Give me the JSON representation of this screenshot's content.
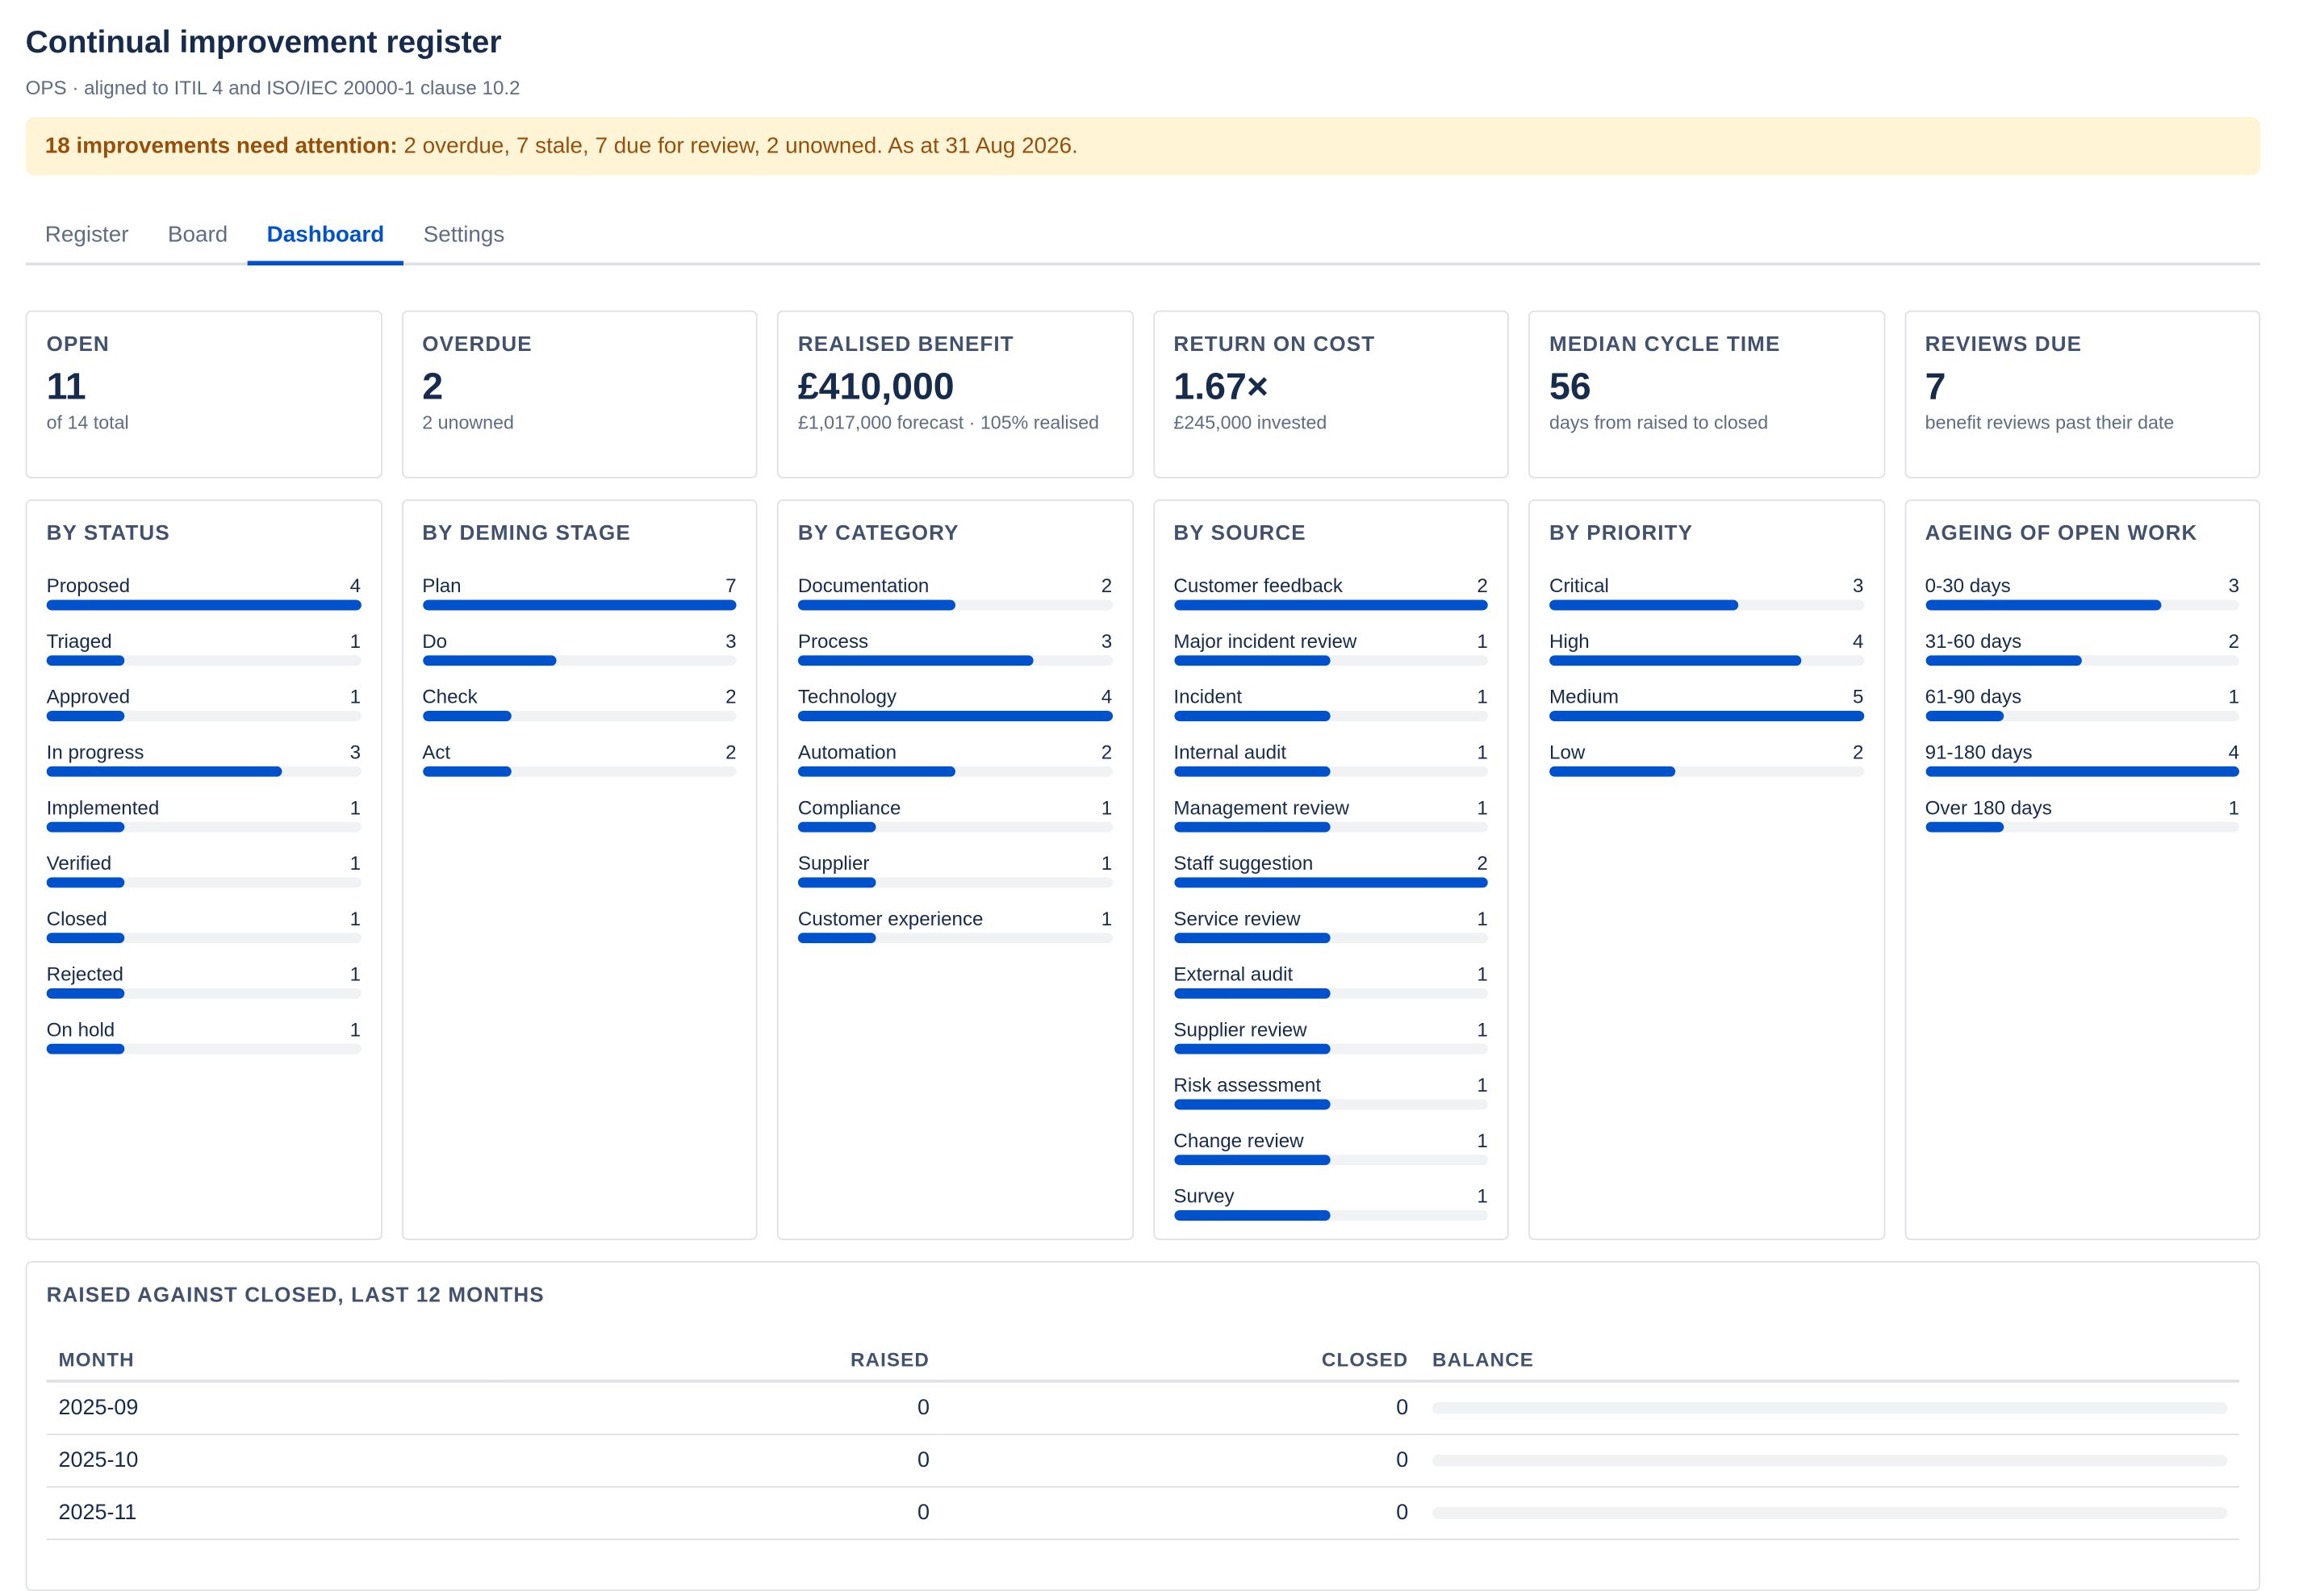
{
  "header": {
    "title": "Continual improvement register",
    "subtitle": "OPS · aligned to ITIL 4 and ISO/IEC 20000-1 clause 10.2"
  },
  "alert": {
    "strong": "18 improvements need attention:",
    "text": " 2 overdue, 7 stale, 7 due for review, 2 unowned. As at 31 Aug 2026."
  },
  "tabs": [
    {
      "label": "Register"
    },
    {
      "label": "Board"
    },
    {
      "label": "Dashboard"
    },
    {
      "label": "Settings"
    }
  ],
  "kpis": [
    {
      "label": "OPEN",
      "value": "11",
      "note": "of 14 total"
    },
    {
      "label": "OVERDUE",
      "value": "2",
      "note": "2 unowned"
    },
    {
      "label": "REALISED BENEFIT",
      "value": "£410,000",
      "note": "£1,017,000 forecast · 105% realised"
    },
    {
      "label": "RETURN ON COST",
      "value": "1.67×",
      "note": "£245,000 invested"
    },
    {
      "label": "MEDIAN CYCLE TIME",
      "value": "56",
      "note": "days from raised to closed"
    },
    {
      "label": "REVIEWS DUE",
      "value": "7",
      "note": "benefit reviews past their date"
    }
  ],
  "distributions": [
    {
      "title": "BY STATUS",
      "max": 4,
      "items": [
        {
          "label": "Proposed",
          "value": 4
        },
        {
          "label": "Triaged",
          "value": 1
        },
        {
          "label": "Approved",
          "value": 1
        },
        {
          "label": "In progress",
          "value": 3
        },
        {
          "label": "Implemented",
          "value": 1
        },
        {
          "label": "Verified",
          "value": 1
        },
        {
          "label": "Closed",
          "value": 1
        },
        {
          "label": "Rejected",
          "value": 1
        },
        {
          "label": "On hold",
          "value": 1
        }
      ]
    },
    {
      "title": "BY DEMING STAGE",
      "max": 7,
      "items": [
        {
          "label": "Plan",
          "value": 7
        },
        {
          "label": "Do",
          "value": 3
        },
        {
          "label": "Check",
          "value": 2
        },
        {
          "label": "Act",
          "value": 2
        }
      ]
    },
    {
      "title": "BY CATEGORY",
      "max": 4,
      "items": [
        {
          "label": "Documentation",
          "value": 2
        },
        {
          "label": "Process",
          "value": 3
        },
        {
          "label": "Technology",
          "value": 4
        },
        {
          "label": "Automation",
          "value": 2
        },
        {
          "label": "Compliance",
          "value": 1
        },
        {
          "label": "Supplier",
          "value": 1
        },
        {
          "label": "Customer experience",
          "value": 1
        }
      ]
    },
    {
      "title": "BY SOURCE",
      "max": 2,
      "items": [
        {
          "label": "Customer feedback",
          "value": 2
        },
        {
          "label": "Major incident review",
          "value": 1
        },
        {
          "label": "Incident",
          "value": 1
        },
        {
          "label": "Internal audit",
          "value": 1
        },
        {
          "label": "Management review",
          "value": 1
        },
        {
          "label": "Staff suggestion",
          "value": 2
        },
        {
          "label": "Service review",
          "value": 1
        },
        {
          "label": "External audit",
          "value": 1
        },
        {
          "label": "Supplier review",
          "value": 1
        },
        {
          "label": "Risk assessment",
          "value": 1
        },
        {
          "label": "Change review",
          "value": 1
        },
        {
          "label": "Survey",
          "value": 1
        }
      ]
    },
    {
      "title": "BY PRIORITY",
      "max": 5,
      "items": [
        {
          "label": "Critical",
          "value": 3
        },
        {
          "label": "High",
          "value": 4
        },
        {
          "label": "Medium",
          "value": 5
        },
        {
          "label": "Low",
          "value": 2
        }
      ]
    },
    {
      "title": "AGEING OF OPEN WORK",
      "max": 4,
      "items": [
        {
          "label": "0-30 days",
          "value": 3
        },
        {
          "label": "31-60 days",
          "value": 2
        },
        {
          "label": "61-90 days",
          "value": 1
        },
        {
          "label": "91-180 days",
          "value": 4
        },
        {
          "label": "Over 180 days",
          "value": 1
        }
      ]
    }
  ],
  "trend": {
    "title": "RAISED AGAINST CLOSED, LAST 12 MONTHS",
    "columns": [
      "MONTH",
      "RAISED",
      "CLOSED",
      "BALANCE"
    ],
    "rows": [
      {
        "month": "2025-09",
        "raised": "0",
        "closed": "0"
      },
      {
        "month": "2025-10",
        "raised": "0",
        "closed": "0"
      },
      {
        "month": "2025-11",
        "raised": "0",
        "closed": "0"
      }
    ]
  },
  "colors": {
    "accent": "#0052cc",
    "alert_bg": "#fff5d6",
    "alert_text": "#974f0c"
  }
}
